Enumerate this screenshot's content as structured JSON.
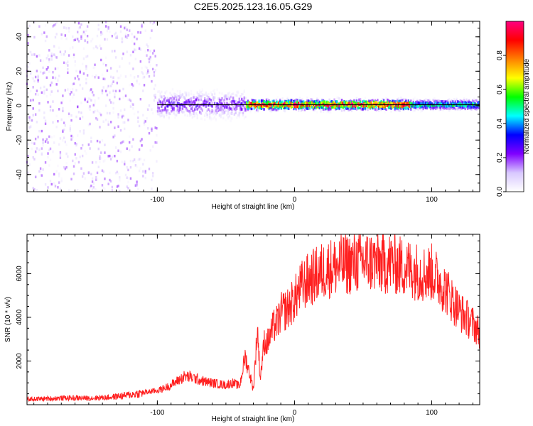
{
  "title": "C2E5.2025.123.16.05.G29",
  "colors": {
    "snr_line": "#ff2020",
    "ridge_line": "#000000",
    "axis": "#000000"
  },
  "chart_data": [
    {
      "type": "heatmap",
      "title": "",
      "xlabel": "Height of straight line (km)",
      "ylabel": "Frequency (Hz)",
      "xlim": [
        -195,
        135
      ],
      "ylim": [
        -50,
        49
      ],
      "x_ticks": [
        -100,
        0,
        100
      ],
      "x_tick_labels": [
        "-100",
        "0",
        "100"
      ],
      "y_ticks": [
        -40,
        -20,
        0,
        20,
        40
      ],
      "y_tick_labels": [
        "-40",
        "-20",
        "0",
        "20",
        "40"
      ],
      "colorbar": {
        "label": "Normalized spectral amplitude",
        "range": [
          0,
          1
        ],
        "ticks": [
          0.0,
          0.2,
          0.4,
          0.6,
          0.8
        ],
        "tick_labels": [
          "0.0",
          "0.2",
          "0.4",
          "0.6",
          "0.8"
        ],
        "colormap": [
          "#ffffff",
          "#d8c8ff",
          "#8000ff",
          "#0000ff",
          "#00ffff",
          "#00ff00",
          "#ffff00",
          "#ff8000",
          "#ff0000",
          "#ff0080"
        ]
      },
      "ridge_line": {
        "x": [
          -100,
          135
        ],
        "y": [
          0.5,
          0.5
        ]
      },
      "regions": [
        {
          "x_range": [
            -195,
            -100
          ],
          "freq_spread_hz": 49,
          "typical_amplitude": 0.12,
          "description_level": "noise"
        },
        {
          "x_range": [
            -100,
            -35
          ],
          "freq_spread_hz": 9,
          "typical_amplitude": 0.25
        },
        {
          "x_range": [
            -35,
            85
          ],
          "freq_spread_hz": 3,
          "typical_amplitude": 0.95
        },
        {
          "x_range": [
            85,
            135
          ],
          "freq_spread_hz": 3,
          "typical_amplitude": 0.5
        }
      ],
      "grid": false,
      "legend": "none"
    },
    {
      "type": "line",
      "title": "",
      "xlabel": "Height of straight line (km)",
      "ylabel": "SNR (10 * v/v)",
      "xlim": [
        -195,
        135
      ],
      "ylim": [
        0,
        7800
      ],
      "x_ticks": [
        -100,
        0,
        100
      ],
      "x_tick_labels": [
        "-100",
        "0",
        "100"
      ],
      "y_ticks": [
        2000,
        4000,
        6000
      ],
      "y_tick_labels": [
        "2000",
        "4000",
        "6000"
      ],
      "series": [
        {
          "x": [
            -195,
            -180,
            -165,
            -150,
            -135,
            -120,
            -110,
            -100,
            -95,
            -90,
            -85,
            -80,
            -75,
            -70,
            -65,
            -60,
            -55,
            -50,
            -45,
            -40,
            -36,
            -33,
            -30,
            -27,
            -25,
            -22,
            -20,
            -17,
            -15,
            -12,
            -10,
            -5,
            0,
            5,
            10,
            15,
            20,
            25,
            30,
            35,
            40,
            45,
            50,
            55,
            60,
            65,
            70,
            75,
            80,
            85,
            90,
            95,
            100,
            105,
            110,
            115,
            120,
            125,
            130,
            135
          ],
          "y": [
            250,
            280,
            310,
            300,
            340,
            450,
            550,
            650,
            750,
            900,
            1100,
            1300,
            1250,
            1150,
            1050,
            1000,
            950,
            900,
            1000,
            850,
            2200,
            1500,
            700,
            3500,
            1200,
            2900,
            2800,
            3300,
            3600,
            3800,
            4200,
            4400,
            4800,
            5400,
            5700,
            5900,
            6100,
            6250,
            6300,
            6400,
            6450,
            6500,
            6550,
            6550,
            6500,
            6450,
            6500,
            6400,
            6300,
            6200,
            6100,
            6000,
            6050,
            5700,
            5300,
            4800,
            4300,
            4000,
            3700,
            3300
          ]
        }
      ],
      "grid": false,
      "legend": "none"
    }
  ]
}
